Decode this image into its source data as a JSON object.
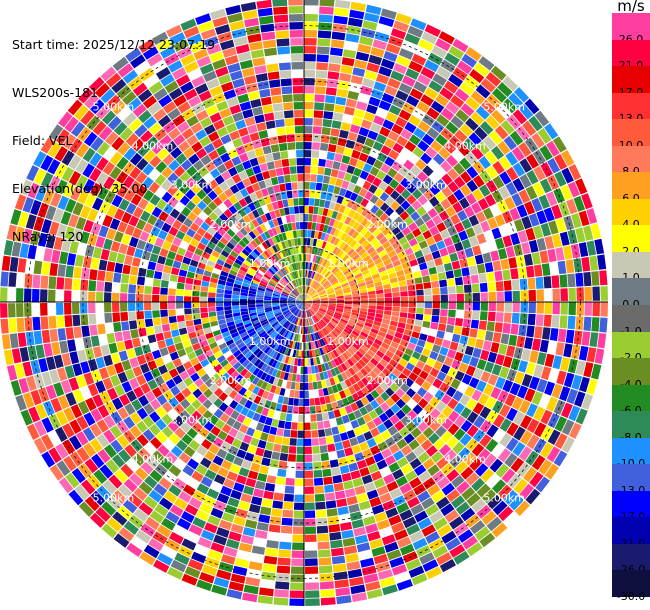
{
  "header": {
    "start_time": "Start time: 2025/12/12 23:07:19",
    "site": "WLS200s-181",
    "field": "Field: VEL",
    "elevation": "Elevation(deg): 35.00",
    "nrays": "NRays: 120"
  },
  "colorbar": {
    "unit": "m/s",
    "entries": [
      {
        "label": "26.0",
        "color": "#ff3ea0"
      },
      {
        "label": "21.0",
        "color": "#ff0040"
      },
      {
        "label": "17.0",
        "color": "#e60000"
      },
      {
        "label": "13.0",
        "color": "#ff3030"
      },
      {
        "label": "10.0",
        "color": "#ff5a3c"
      },
      {
        "label": "8.0",
        "color": "#ff7a5a"
      },
      {
        "label": "6.0",
        "color": "#ffa020"
      },
      {
        "label": "4.0",
        "color": "#ffd000"
      },
      {
        "label": "2.0",
        "color": "#ffff00"
      },
      {
        "label": "1.0",
        "color": "#c8c8b4"
      },
      {
        "label": "0.0",
        "color": "#6e7a84"
      },
      {
        "label": "-1.0",
        "color": "#6b6b6b"
      },
      {
        "label": "-2.0",
        "color": "#9acd32"
      },
      {
        "label": "-4.0",
        "color": "#6b8e23"
      },
      {
        "label": "-6.0",
        "color": "#228b22"
      },
      {
        "label": "-8.0",
        "color": "#2e8b57"
      },
      {
        "label": "-10.0",
        "color": "#1e90ff"
      },
      {
        "label": "-13.0",
        "color": "#4060dd"
      },
      {
        "label": "-17.0",
        "color": "#0000ff"
      },
      {
        "label": "-21.0",
        "color": "#0000b0"
      },
      {
        "label": "-26.0",
        "color": "#1a1a6e"
      },
      {
        "label": "-30.0",
        "color": "#101040"
      }
    ]
  },
  "range_rings": {
    "labels": [
      "1.00km",
      "2.00km",
      "3.00km",
      "4.00km",
      "5.00km"
    ],
    "max_range_km": 5.5
  },
  "ppi": {
    "nrays": 120,
    "gates_per_ray": 38
  }
}
